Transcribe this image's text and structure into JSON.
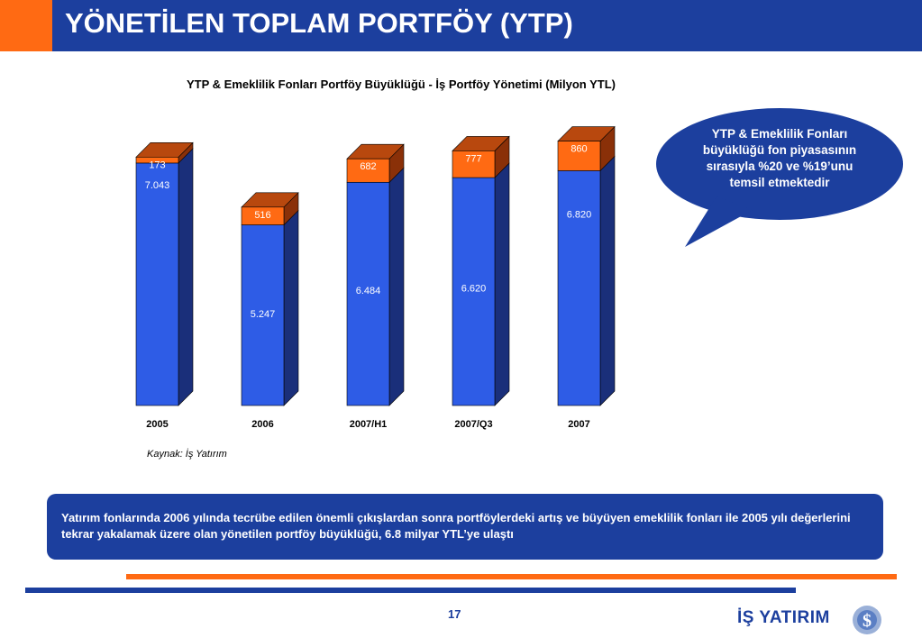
{
  "header": {
    "title": "YÖNETİLEN TOPLAM PORTFÖY (YTP)"
  },
  "colors": {
    "brand_blue": "#1c3f9e",
    "accent_orange": "#ff6a13",
    "bar_blue": "#2e5ce6",
    "bar_orange": "#ff6a13"
  },
  "chart_data": {
    "type": "bar",
    "stacked": true,
    "title": "YTP & Emeklilik Fonları Portföy Büyüklüğü  -  İş Portföy Yönetimi (Milyon YTL)",
    "categories": [
      "2005",
      "2006",
      "2007/H1",
      "2007/Q3",
      "2007"
    ],
    "series": [
      {
        "values": [
          7043,
          5247,
          6484,
          6620,
          6820
        ],
        "labels": [
          "7.043",
          "5.247",
          "6.484",
          "6.620",
          "6.820"
        ],
        "color": "#2e5ce6"
      },
      {
        "values": [
          173,
          516,
          682,
          777,
          860
        ],
        "labels": [
          "173",
          "516",
          "682",
          "777",
          "860"
        ],
        "color": "#ff6a13"
      }
    ],
    "ylim": [
      0,
      7800
    ],
    "grid": false,
    "legend": "none",
    "style": "3d-columns"
  },
  "source": "Kaynak: İş Yatırım",
  "callout": {
    "text": "YTP & Emeklilik Fonları büyüklüğü fon piyasasının sırasıyla %20 ve %19’unu temsil etmektedir"
  },
  "summary": {
    "text": "Yatırım fonlarında 2006 yılında tecrübe edilen önemli çıkışlardan sonra portföylerdeki artış ve büyüyen emeklilik fonları ile 2005 yılı değerlerini tekrar yakalamak üzere olan yönetilen portföy büyüklüğü,  6.8 milyar YTL’ye ulaştı"
  },
  "page_number": "17",
  "logo": {
    "text": "İŞ YATIRIM",
    "icon": "is-yatirim-logo-icon"
  }
}
